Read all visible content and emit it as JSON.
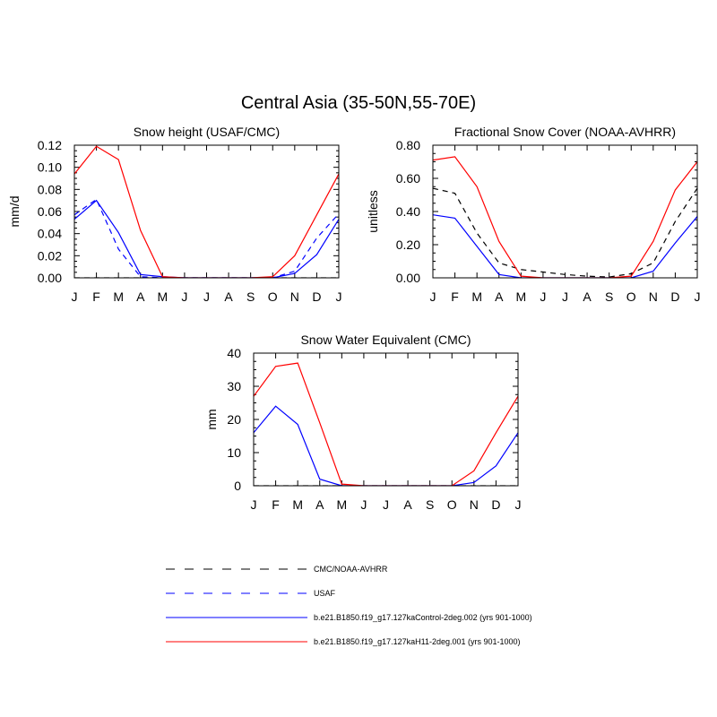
{
  "figure": {
    "title": "Central Asia (35-50N,55-70E)"
  },
  "colors": {
    "black": "#000000",
    "blue": "#0000ff",
    "red": "#ff0000"
  },
  "legend": [
    {
      "label": "CMC/NOAA-AVHRR",
      "color": "#000000",
      "dash": true
    },
    {
      "label": "USAF",
      "color": "#0000ff",
      "dash": true
    },
    {
      "label": "b.e21.B1850.f19_g17.127kaControl-2deg.002 (yrs 901-1000)",
      "color": "#0000ff",
      "dash": false
    },
    {
      "label": "b.e21.B1850.f19_g17.127kaH11-2deg.001 (yrs 901-1000)",
      "color": "#ff0000",
      "dash": false
    }
  ],
  "chart_data": [
    {
      "type": "line",
      "title": "Snow height (USAF/CMC)",
      "ylabel": "mm/d",
      "xlabel": "",
      "categories": [
        "J",
        "F",
        "M",
        "A",
        "M",
        "J",
        "J",
        "A",
        "S",
        "O",
        "N",
        "D",
        "J"
      ],
      "ylim": [
        0,
        0.12
      ],
      "yticks": [
        0,
        0.02,
        0.04,
        0.06,
        0.08,
        0.1,
        0.12
      ],
      "ytick_labels": [
        "0.00",
        "0.02",
        "0.04",
        "0.06",
        "0.08",
        "0.10",
        "0.12"
      ],
      "series": [
        {
          "name": "CMC/NOAA-AVHRR",
          "color": "#000000",
          "dash": true,
          "values": [
            0.0,
            0.0,
            0.0,
            0.0,
            0.0,
            0.0,
            0.0,
            0.0,
            0.0,
            0.0,
            0.0,
            0.0,
            0.0
          ]
        },
        {
          "name": "USAF",
          "color": "#0000ff",
          "dash": true,
          "values": [
            0.057,
            0.071,
            0.026,
            0.001,
            0.0,
            0.0,
            0.0,
            0.0,
            0.0,
            0.0,
            0.006,
            0.036,
            0.058
          ]
        },
        {
          "name": "b.e21.B1850.f19_g17.127kaControl-2deg.002 (yrs 901-1000)",
          "color": "#0000ff",
          "dash": false,
          "values": [
            0.053,
            0.07,
            0.041,
            0.003,
            0.001,
            0.0,
            0.0,
            0.0,
            0.0,
            0.0,
            0.004,
            0.021,
            0.053
          ]
        },
        {
          "name": "b.e21.B1850.f19_g17.127kaH11-2deg.001 (yrs 901-1000)",
          "color": "#ff0000",
          "dash": false,
          "values": [
            0.094,
            0.119,
            0.107,
            0.043,
            0.001,
            0.0,
            0.0,
            0.0,
            0.0,
            0.001,
            0.02,
            0.057,
            0.094
          ]
        }
      ]
    },
    {
      "type": "line",
      "title": "Fractional Snow Cover (NOAA-AVHRR)",
      "ylabel": "unitless",
      "xlabel": "",
      "categories": [
        "J",
        "F",
        "M",
        "A",
        "M",
        "J",
        "J",
        "A",
        "S",
        "O",
        "N",
        "D",
        "J"
      ],
      "ylim": [
        0,
        0.8
      ],
      "yticks": [
        0,
        0.2,
        0.4,
        0.6,
        0.8
      ],
      "ytick_labels": [
        "0.00",
        "0.20",
        "0.40",
        "0.60",
        "0.80"
      ],
      "series": [
        {
          "name": "CMC/NOAA-AVHRR",
          "color": "#000000",
          "dash": true,
          "values": [
            0.54,
            0.51,
            0.27,
            0.09,
            0.05,
            0.035,
            0.02,
            0.01,
            0.005,
            0.025,
            0.09,
            0.34,
            0.54
          ]
        },
        {
          "name": "b.e21.B1850.f19_g17.127kaControl-2deg.002 (yrs 901-1000)",
          "color": "#0000ff",
          "dash": false,
          "values": [
            0.38,
            0.36,
            0.19,
            0.02,
            0.0,
            0.0,
            0.0,
            0.0,
            0.0,
            0.0,
            0.04,
            0.21,
            0.37
          ]
        },
        {
          "name": "b.e21.B1850.f19_g17.127kaH11-2deg.001 (yrs 901-1000)",
          "color": "#ff0000",
          "dash": false,
          "values": [
            0.71,
            0.73,
            0.55,
            0.22,
            0.01,
            0.0,
            0.0,
            0.0,
            0.0,
            0.01,
            0.22,
            0.53,
            0.7
          ]
        }
      ]
    },
    {
      "type": "line",
      "title": "Snow Water Equivalent (CMC)",
      "ylabel": "mm",
      "xlabel": "",
      "categories": [
        "J",
        "F",
        "M",
        "A",
        "M",
        "J",
        "J",
        "A",
        "S",
        "O",
        "N",
        "D",
        "J"
      ],
      "ylim": [
        0,
        40
      ],
      "yticks": [
        0,
        10,
        20,
        30,
        40
      ],
      "ytick_labels": [
        "0",
        "10",
        "20",
        "30",
        "40"
      ],
      "series": [
        {
          "name": "CMC/NOAA-AVHRR",
          "color": "#000000",
          "dash": true,
          "values": [
            0,
            0,
            0,
            0,
            0,
            0,
            0,
            0,
            0,
            0,
            0,
            0,
            0
          ]
        },
        {
          "name": "b.e21.B1850.f19_g17.127kaControl-2deg.002 (yrs 901-1000)",
          "color": "#0000ff",
          "dash": false,
          "values": [
            16,
            24,
            18.5,
            2,
            0,
            0,
            0,
            0,
            0,
            0,
            1,
            6,
            16
          ]
        },
        {
          "name": "b.e21.B1850.f19_g17.127kaH11-2deg.001 (yrs 901-1000)",
          "color": "#ff0000",
          "dash": false,
          "values": [
            27,
            36,
            37,
            19,
            0.5,
            0,
            0,
            0,
            0,
            0,
            4.5,
            16,
            27
          ]
        }
      ]
    }
  ]
}
